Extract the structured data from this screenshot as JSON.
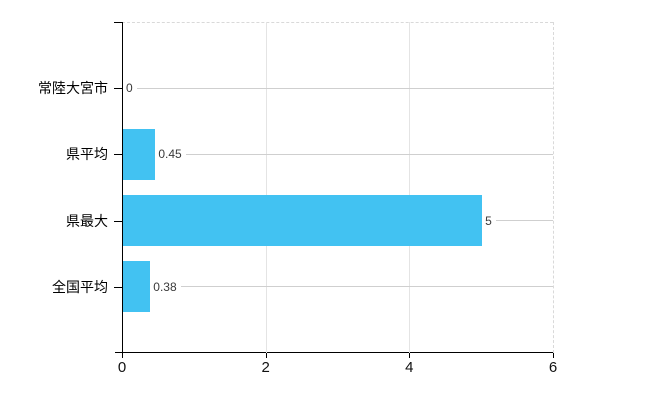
{
  "chart_data": {
    "type": "bar",
    "orientation": "horizontal",
    "title": "",
    "categories": [
      "常陸大宮市",
      "県平均",
      "県最大",
      "全国平均"
    ],
    "values": [
      0,
      0.45,
      5,
      0.38
    ],
    "value_labels": [
      "0",
      "0.45",
      "5",
      "0.38"
    ],
    "xlabel": "",
    "ylabel": "",
    "xlim": [
      0,
      6
    ],
    "x_tick_values": [
      0,
      2,
      4,
      6
    ],
    "x_tick_labels": [
      "0",
      "2",
      "4",
      "6"
    ],
    "grid": "vertical-light, dashed top and right plot borders, leader line from each value label to right edge",
    "legend_position": "none",
    "colors": {
      "bar": "#42c2f2",
      "axis": "#000000",
      "gridline": "#e4e4e4",
      "leader_line": "#cfcfcf",
      "dashed_border": "#d9d9d9",
      "category_text": "#000000",
      "value_text": "#3a3a3a",
      "tick_text": "#111111",
      "background": "#ffffff"
    }
  }
}
